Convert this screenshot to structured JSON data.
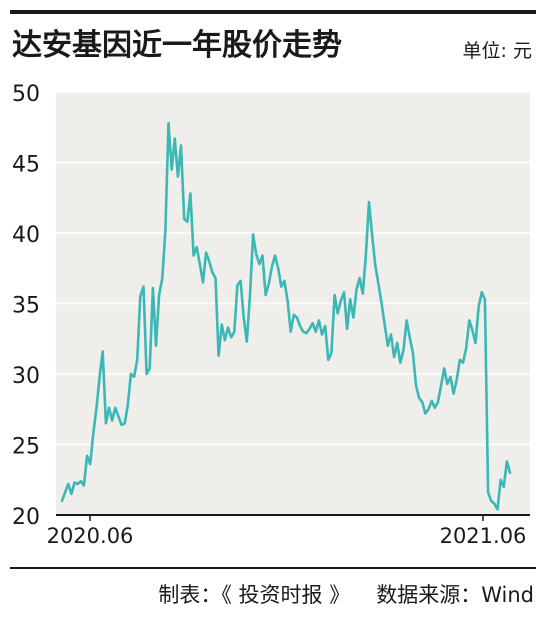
{
  "header": {
    "title": "达安基因近一年股价走势",
    "unit": "单位: 元"
  },
  "footer": {
    "maker": "制表：《 投资时报 》",
    "source": "数据来源：Wind"
  },
  "colors": {
    "line": "#3bb8b5",
    "plot_background": "#efeeeb",
    "grid": "#ffffff",
    "text": "#1a1a1a"
  },
  "chart_data": {
    "type": "line",
    "title": "达安基因近一年股价走势",
    "xlabel": "",
    "ylabel": "单位: 元",
    "ylim": [
      20,
      50
    ],
    "yticks": [
      20,
      25,
      30,
      35,
      40,
      45,
      50
    ],
    "grid": true,
    "x_tick_labels": [
      "2020.06",
      "2021.06"
    ],
    "series": [
      {
        "values": [
          21.0,
          21.6,
          22.2,
          21.5,
          22.3,
          22.2,
          22.4,
          22.1,
          24.2,
          23.6,
          25.8,
          27.6,
          29.8,
          31.6,
          26.5,
          27.6,
          26.7,
          27.6,
          27.0,
          26.4,
          26.5,
          27.8,
          30.0,
          29.8,
          31.0,
          35.5,
          36.2,
          30.0,
          30.4,
          36.1,
          32.0,
          35.6,
          36.8,
          40.2,
          47.8,
          44.5,
          46.7,
          44.0,
          46.2,
          41.0,
          40.8,
          42.8,
          38.4,
          39.0,
          37.8,
          36.5,
          38.6,
          38.0,
          37.2,
          36.8,
          31.3,
          33.5,
          32.4,
          33.3,
          32.6,
          33.0,
          36.3,
          36.6,
          34.0,
          32.3,
          35.6,
          39.9,
          38.5,
          37.8,
          38.4,
          35.6,
          36.4,
          37.6,
          38.4,
          37.5,
          36.2,
          36.6,
          35.2,
          33.0,
          34.2,
          34.0,
          33.4,
          33.0,
          32.9,
          33.2,
          33.6,
          33.0,
          33.8,
          32.8,
          33.4,
          31.0,
          31.5,
          35.6,
          34.3,
          35.2,
          35.8,
          33.2,
          35.3,
          34.0,
          36.0,
          36.8,
          35.7,
          38.5,
          42.2,
          39.8,
          37.7,
          36.4,
          35.0,
          33.5,
          32.0,
          32.8,
          31.2,
          32.2,
          30.8,
          31.7,
          33.8,
          32.6,
          31.5,
          29.2,
          28.3,
          28.0,
          27.2,
          27.5,
          28.1,
          27.6,
          28.0,
          29.2,
          30.4,
          29.3,
          29.8,
          28.6,
          29.6,
          31.0,
          30.8,
          31.8,
          33.8,
          33.1,
          32.2,
          34.8,
          35.8,
          35.3,
          21.6,
          21.0,
          20.8,
          20.4,
          22.5,
          22.0,
          23.8,
          23.0
        ]
      }
    ]
  }
}
